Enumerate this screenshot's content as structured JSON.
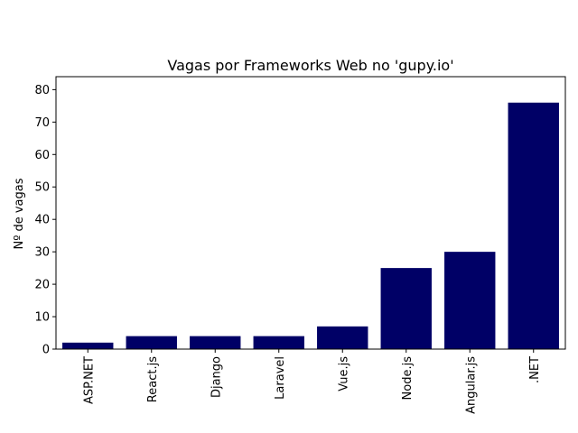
{
  "chart_data": {
    "type": "bar",
    "title": "Vagas por Frameworks Web no 'gupy.io'",
    "xlabel": "",
    "ylabel": "Nº de vagas",
    "categories": [
      "ASP.NET",
      "React.js",
      "Django",
      "Laravel",
      "Vue.js",
      "Node.js",
      "Angular.js",
      ".NET"
    ],
    "values": [
      2,
      4,
      4,
      4,
      7,
      25,
      30,
      76
    ],
    "ylim": [
      0,
      84
    ],
    "yticks": [
      0,
      10,
      20,
      30,
      40,
      50,
      60,
      70,
      80
    ],
    "grid": false,
    "bar_color": "#000066"
  }
}
